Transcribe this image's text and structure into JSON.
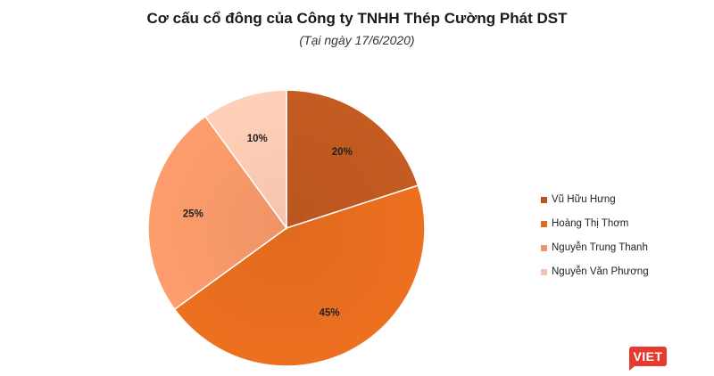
{
  "chart_data": {
    "type": "pie",
    "title": "Cơ cấu cổ đông của Công ty TNHH Thép Cường Phát DST",
    "subtitle": "(Tại ngày 17/6/2020)",
    "slices": [
      {
        "label": "Vũ Hữu Hưng",
        "value": 20,
        "display": "20%",
        "color": "#b9561f"
      },
      {
        "label": "Hoàng Thị Thơm",
        "value": 45,
        "display": "45%",
        "color": "#e06a1e"
      },
      {
        "label": "Nguyễn Trung Thanh",
        "value": 25,
        "display": "25%",
        "color": "#ef9466"
      },
      {
        "label": "Nguyễn Văn Phương",
        "value": 10,
        "display": "10%",
        "color": "#f6c4ae"
      }
    ],
    "start_angle_deg": 0,
    "direction": "clockwise",
    "legend_position": "right"
  },
  "logo": {
    "text": "VIET"
  }
}
